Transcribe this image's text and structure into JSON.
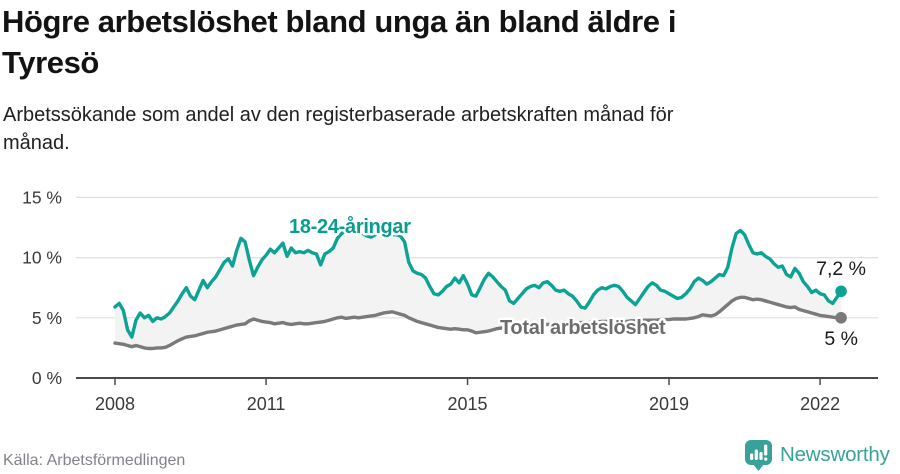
{
  "header": {
    "title_line1": "Högre arbetslöshet bland unga än bland äldre i",
    "title_line2": "Tyresö",
    "subtitle_line1": "Arbetssökande som andel av den registerbaserade arbetskraften månad för",
    "subtitle_line2": "månad."
  },
  "footer": {
    "source": "Källa: Arbetsförmedlingen",
    "brand": "Newsworthy"
  },
  "colors": {
    "teal": "#0ca294",
    "teal_label": "#0a9c8f",
    "gray_line": "#7a7a7a",
    "gray_label": "#6d6d6d",
    "axis": "#4a4a4a",
    "grid": "#e0e0e0",
    "tick_text": "#3a3a3a",
    "end_label_text": "#1a1a1a",
    "fill_between": "#f3f3f3",
    "brand_teal": "#38a29a"
  },
  "chart_data": {
    "type": "line",
    "title": "Högre arbetslöshet bland unga än bland äldre i Tyresö",
    "subtitle": "Arbetssökande som andel av den registerbaserade arbetskraften månad för månad.",
    "x_unit": "month",
    "x_start": "2008-01",
    "x_end": "2022-06",
    "grid": true,
    "legend_position": "inline-labels",
    "ylim": [
      0,
      16.5
    ],
    "y_ticks": [
      {
        "value": 0,
        "label": "0 %"
      },
      {
        "value": 5,
        "label": "5 %"
      },
      {
        "value": 10,
        "label": "10 %"
      },
      {
        "value": 15,
        "label": "15 %"
      }
    ],
    "x_ticks": [
      {
        "month": 0,
        "label": "2008"
      },
      {
        "month": 36,
        "label": "2011"
      },
      {
        "month": 84,
        "label": "2015"
      },
      {
        "month": 132,
        "label": "2019"
      },
      {
        "month": 168,
        "label": "2022"
      }
    ],
    "fill_between_series": true,
    "series": [
      {
        "name": "18-24-åringar",
        "color": "#0ca294",
        "label_color": "#0a9c8f",
        "end_value": 7.2,
        "end_label": "7,2 %",
        "values": [
          5.9,
          6.2,
          5.6,
          4.0,
          3.4,
          4.8,
          5.4,
          5.0,
          5.2,
          4.7,
          5.0,
          4.9,
          5.1,
          5.4,
          5.9,
          6.4,
          7.0,
          7.5,
          6.8,
          6.5,
          7.3,
          8.1,
          7.5,
          8.0,
          8.4,
          9.0,
          9.6,
          9.9,
          9.3,
          10.6,
          11.6,
          11.3,
          9.8,
          8.5,
          9.2,
          9.8,
          10.2,
          10.7,
          10.4,
          10.8,
          11.2,
          10.1,
          10.8,
          10.4,
          10.5,
          10.4,
          10.6,
          10.4,
          10.3,
          9.4,
          10.3,
          10.5,
          10.8,
          11.6,
          12.0,
          12.2,
          12.3,
          12.2,
          12.3,
          12.0,
          11.8,
          11.7,
          11.9,
          12.1,
          12.2,
          12.0,
          11.9,
          11.9,
          11.8,
          11.3,
          9.6,
          8.9,
          8.7,
          8.6,
          8.3,
          7.6,
          7.0,
          6.9,
          7.2,
          7.6,
          7.8,
          8.3,
          7.9,
          8.5,
          7.8,
          6.9,
          6.8,
          7.5,
          8.2,
          8.7,
          8.4,
          8.0,
          7.6,
          7.3,
          6.4,
          6.2,
          6.6,
          7.0,
          7.4,
          7.6,
          7.7,
          7.5,
          7.9,
          8.0,
          7.7,
          7.3,
          7.2,
          7.3,
          7.0,
          6.8,
          6.4,
          5.9,
          5.8,
          6.3,
          6.9,
          7.3,
          7.5,
          7.4,
          7.6,
          7.7,
          7.6,
          7.2,
          6.7,
          6.4,
          6.1,
          6.6,
          7.1,
          7.6,
          7.9,
          7.7,
          7.3,
          7.2,
          7.0,
          6.8,
          6.6,
          6.7,
          7.0,
          7.4,
          8.0,
          8.3,
          8.1,
          7.8,
          8.0,
          8.3,
          8.6,
          8.5,
          9.2,
          10.8,
          12.0,
          12.25,
          11.9,
          11.1,
          10.4,
          10.3,
          10.4,
          10.1,
          9.9,
          9.5,
          9.2,
          9.3,
          8.6,
          8.4,
          9.1,
          8.7,
          8.0,
          7.6,
          7.1,
          7.3,
          7.0,
          6.9,
          6.4,
          6.2,
          6.7,
          7.2
        ]
      },
      {
        "name": "Total arbetslöshet",
        "color": "#7a7a7a",
        "label_color": "#6d6d6d",
        "end_value": 5.0,
        "end_label": "5 %",
        "values": [
          2.9,
          2.85,
          2.8,
          2.7,
          2.6,
          2.7,
          2.6,
          2.5,
          2.45,
          2.45,
          2.5,
          2.5,
          2.55,
          2.7,
          2.9,
          3.1,
          3.25,
          3.4,
          3.45,
          3.5,
          3.6,
          3.7,
          3.8,
          3.85,
          3.9,
          4.0,
          4.1,
          4.2,
          4.3,
          4.4,
          4.45,
          4.5,
          4.75,
          4.9,
          4.8,
          4.7,
          4.65,
          4.6,
          4.5,
          4.55,
          4.6,
          4.5,
          4.45,
          4.5,
          4.55,
          4.5,
          4.5,
          4.55,
          4.6,
          4.65,
          4.7,
          4.8,
          4.9,
          5.0,
          5.05,
          4.95,
          5.0,
          5.05,
          5.0,
          5.05,
          5.1,
          5.15,
          5.2,
          5.3,
          5.4,
          5.45,
          5.5,
          5.4,
          5.3,
          5.2,
          5.0,
          4.85,
          4.7,
          4.6,
          4.5,
          4.4,
          4.3,
          4.2,
          4.15,
          4.1,
          4.05,
          4.1,
          4.05,
          4.0,
          4.0,
          3.9,
          3.75,
          3.8,
          3.85,
          3.9,
          4.0,
          4.1,
          4.15,
          4.2,
          4.2,
          4.25,
          4.25,
          4.3,
          4.3,
          4.35,
          4.35,
          4.4,
          4.4,
          4.45,
          4.45,
          4.5,
          4.5,
          4.5,
          4.5,
          4.55,
          4.55,
          4.6,
          4.6,
          4.6,
          4.65,
          4.65,
          4.7,
          4.7,
          4.7,
          4.7,
          4.7,
          4.7,
          4.7,
          4.75,
          4.75,
          4.75,
          4.8,
          4.8,
          4.8,
          4.8,
          4.85,
          4.85,
          4.85,
          4.9,
          4.9,
          4.9,
          4.9,
          4.95,
          5.0,
          5.1,
          5.25,
          5.2,
          5.15,
          5.25,
          5.5,
          5.8,
          6.1,
          6.4,
          6.6,
          6.7,
          6.7,
          6.6,
          6.5,
          6.55,
          6.5,
          6.4,
          6.3,
          6.2,
          6.1,
          6.0,
          5.9,
          5.85,
          5.9,
          5.7,
          5.6,
          5.5,
          5.4,
          5.3,
          5.2,
          5.15,
          5.1,
          5.05,
          5.0,
          5.0
        ]
      }
    ]
  }
}
